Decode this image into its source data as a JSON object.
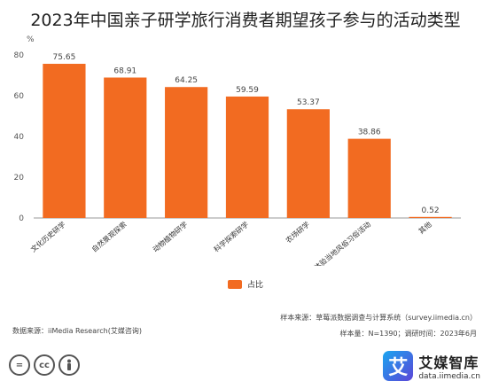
{
  "title": "2023年中国亲子研学旅行消费者期望孩子参与的活动类型",
  "chart_data": {
    "type": "bar",
    "ylabel": "%",
    "ylim": [
      0,
      80
    ],
    "yticks": [
      0,
      20,
      40,
      60,
      80
    ],
    "grid": false,
    "legend_position": "bottom-center",
    "categories": [
      "文化历史研学",
      "自然景观探索",
      "动物植物研学",
      "科学探索研学",
      "农场研学",
      "体验当地风俗习俗活动",
      "其他"
    ],
    "series": [
      {
        "name": "占比",
        "values": [
          75.65,
          68.91,
          64.25,
          59.59,
          53.37,
          38.86,
          0.52
        ]
      }
    ],
    "colors": {
      "bar": "#F26B21"
    }
  },
  "notes": {
    "sample_source": "样本来源：草莓派数据调查与计算系统（survey.iimedia.cn）",
    "sample_size": "样本量：N=1390；调研时间：2023年6月",
    "data_source": "数据来源：iiMedia Research(艾媒咨询)"
  },
  "license_icons": {
    "equals": "=",
    "cc": "cc",
    "person": "person-icon"
  },
  "brand": {
    "logo_glyph": "艾",
    "name": "艾媒智库",
    "url": "data.iimedia.cn",
    "colors": {
      "logo_start": "#1aa6f0",
      "logo_end": "#5b45d8"
    }
  }
}
